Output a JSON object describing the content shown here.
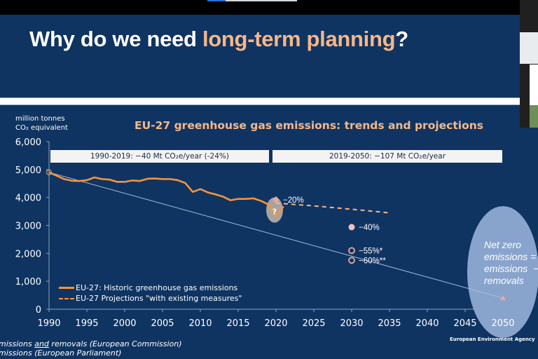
{
  "slide": {
    "title_plain": "Why do we need ",
    "title_accent": "long-term planning",
    "title_end": "?",
    "colors": {
      "background": "#0f3462",
      "accent": "#f5b78a",
      "historic_line": "#f7943a",
      "trend_line": "#a9bfd9",
      "target_marker": "#e8a8a0",
      "netzero_ellipse": "#9fb8df"
    }
  },
  "chart_data": {
    "type": "line",
    "title": "EU-27 greenhouse gas emissions: trends and projections",
    "ylabel": [
      "million tonnes",
      "CO₂ equivalent"
    ],
    "xlabel": "",
    "xlim": [
      1990,
      2050
    ],
    "ylim": [
      0,
      6000
    ],
    "x_ticks": [
      1990,
      1995,
      2000,
      2005,
      2010,
      2015,
      2020,
      2025,
      2030,
      2035,
      2040,
      2045,
      2050
    ],
    "y_ticks": [
      0,
      1000,
      2000,
      3000,
      4000,
      5000,
      6000
    ],
    "y_tick_labels": [
      "0",
      "1,000",
      "2,000",
      "3,000",
      "4,000",
      "5,000",
      "6,000"
    ],
    "grid": false,
    "bands": [
      {
        "label": "1990-2019:  −40 Mt CO₂e/year (-24%)"
      },
      {
        "label": "2019-2050:  −107 Mt CO₂e/year"
      }
    ],
    "series": [
      {
        "name": "EU-27: Historic greenhouse gas emissions",
        "style": "solid",
        "x": [
          1990,
          1991,
          1992,
          1993,
          1994,
          1995,
          1996,
          1997,
          1998,
          1999,
          2000,
          2001,
          2002,
          2003,
          2004,
          2005,
          2006,
          2007,
          2008,
          2009,
          2010,
          2011,
          2012,
          2013,
          2014,
          2015,
          2016,
          2017,
          2018,
          2019,
          2020,
          2021
        ],
        "y": [
          4900,
          4780,
          4660,
          4600,
          4590,
          4620,
          4720,
          4660,
          4640,
          4560,
          4560,
          4610,
          4590,
          4670,
          4680,
          4660,
          4660,
          4620,
          4520,
          4200,
          4300,
          4180,
          4110,
          4030,
          3900,
          3950,
          3950,
          3970,
          3880,
          3750,
          3350,
          3680
        ]
      },
      {
        "name": "EU-27 Projections \"with existing measures\"",
        "style": "dashed",
        "x": [
          2020,
          2025,
          2030,
          2035
        ],
        "y": [
          3800,
          3700,
          3580,
          3450
        ]
      },
      {
        "name": "Linear trend",
        "style": "thin",
        "x": [
          1990,
          2050
        ],
        "y": [
          4900,
          400
        ]
      }
    ],
    "markers": [
      {
        "label": "−20%",
        "x": 2020,
        "y": 3920,
        "shape": "diamond"
      },
      {
        "label": "−40%",
        "x": 2030,
        "y": 2940,
        "shape": "dot"
      },
      {
        "label": "−55%*",
        "x": 2030,
        "y": 2100,
        "shape": "ring"
      },
      {
        "label": "−60%**",
        "x": 2030,
        "y": 1750,
        "shape": "ring"
      },
      {
        "label": "",
        "x": 2050,
        "y": 400,
        "shape": "triangle"
      }
    ],
    "annotation_question": "?",
    "netzero_text": "Net zero\nemissions =\nemissions  −\nremovals",
    "legend_position": "bottom-left"
  },
  "footnotes": {
    "line1_pre": "missions ",
    "line1_underlined": "and",
    "line1_post": " removals (European Commission)",
    "line2": "missions (European Parliament)"
  },
  "source": "European Environment Agency"
}
